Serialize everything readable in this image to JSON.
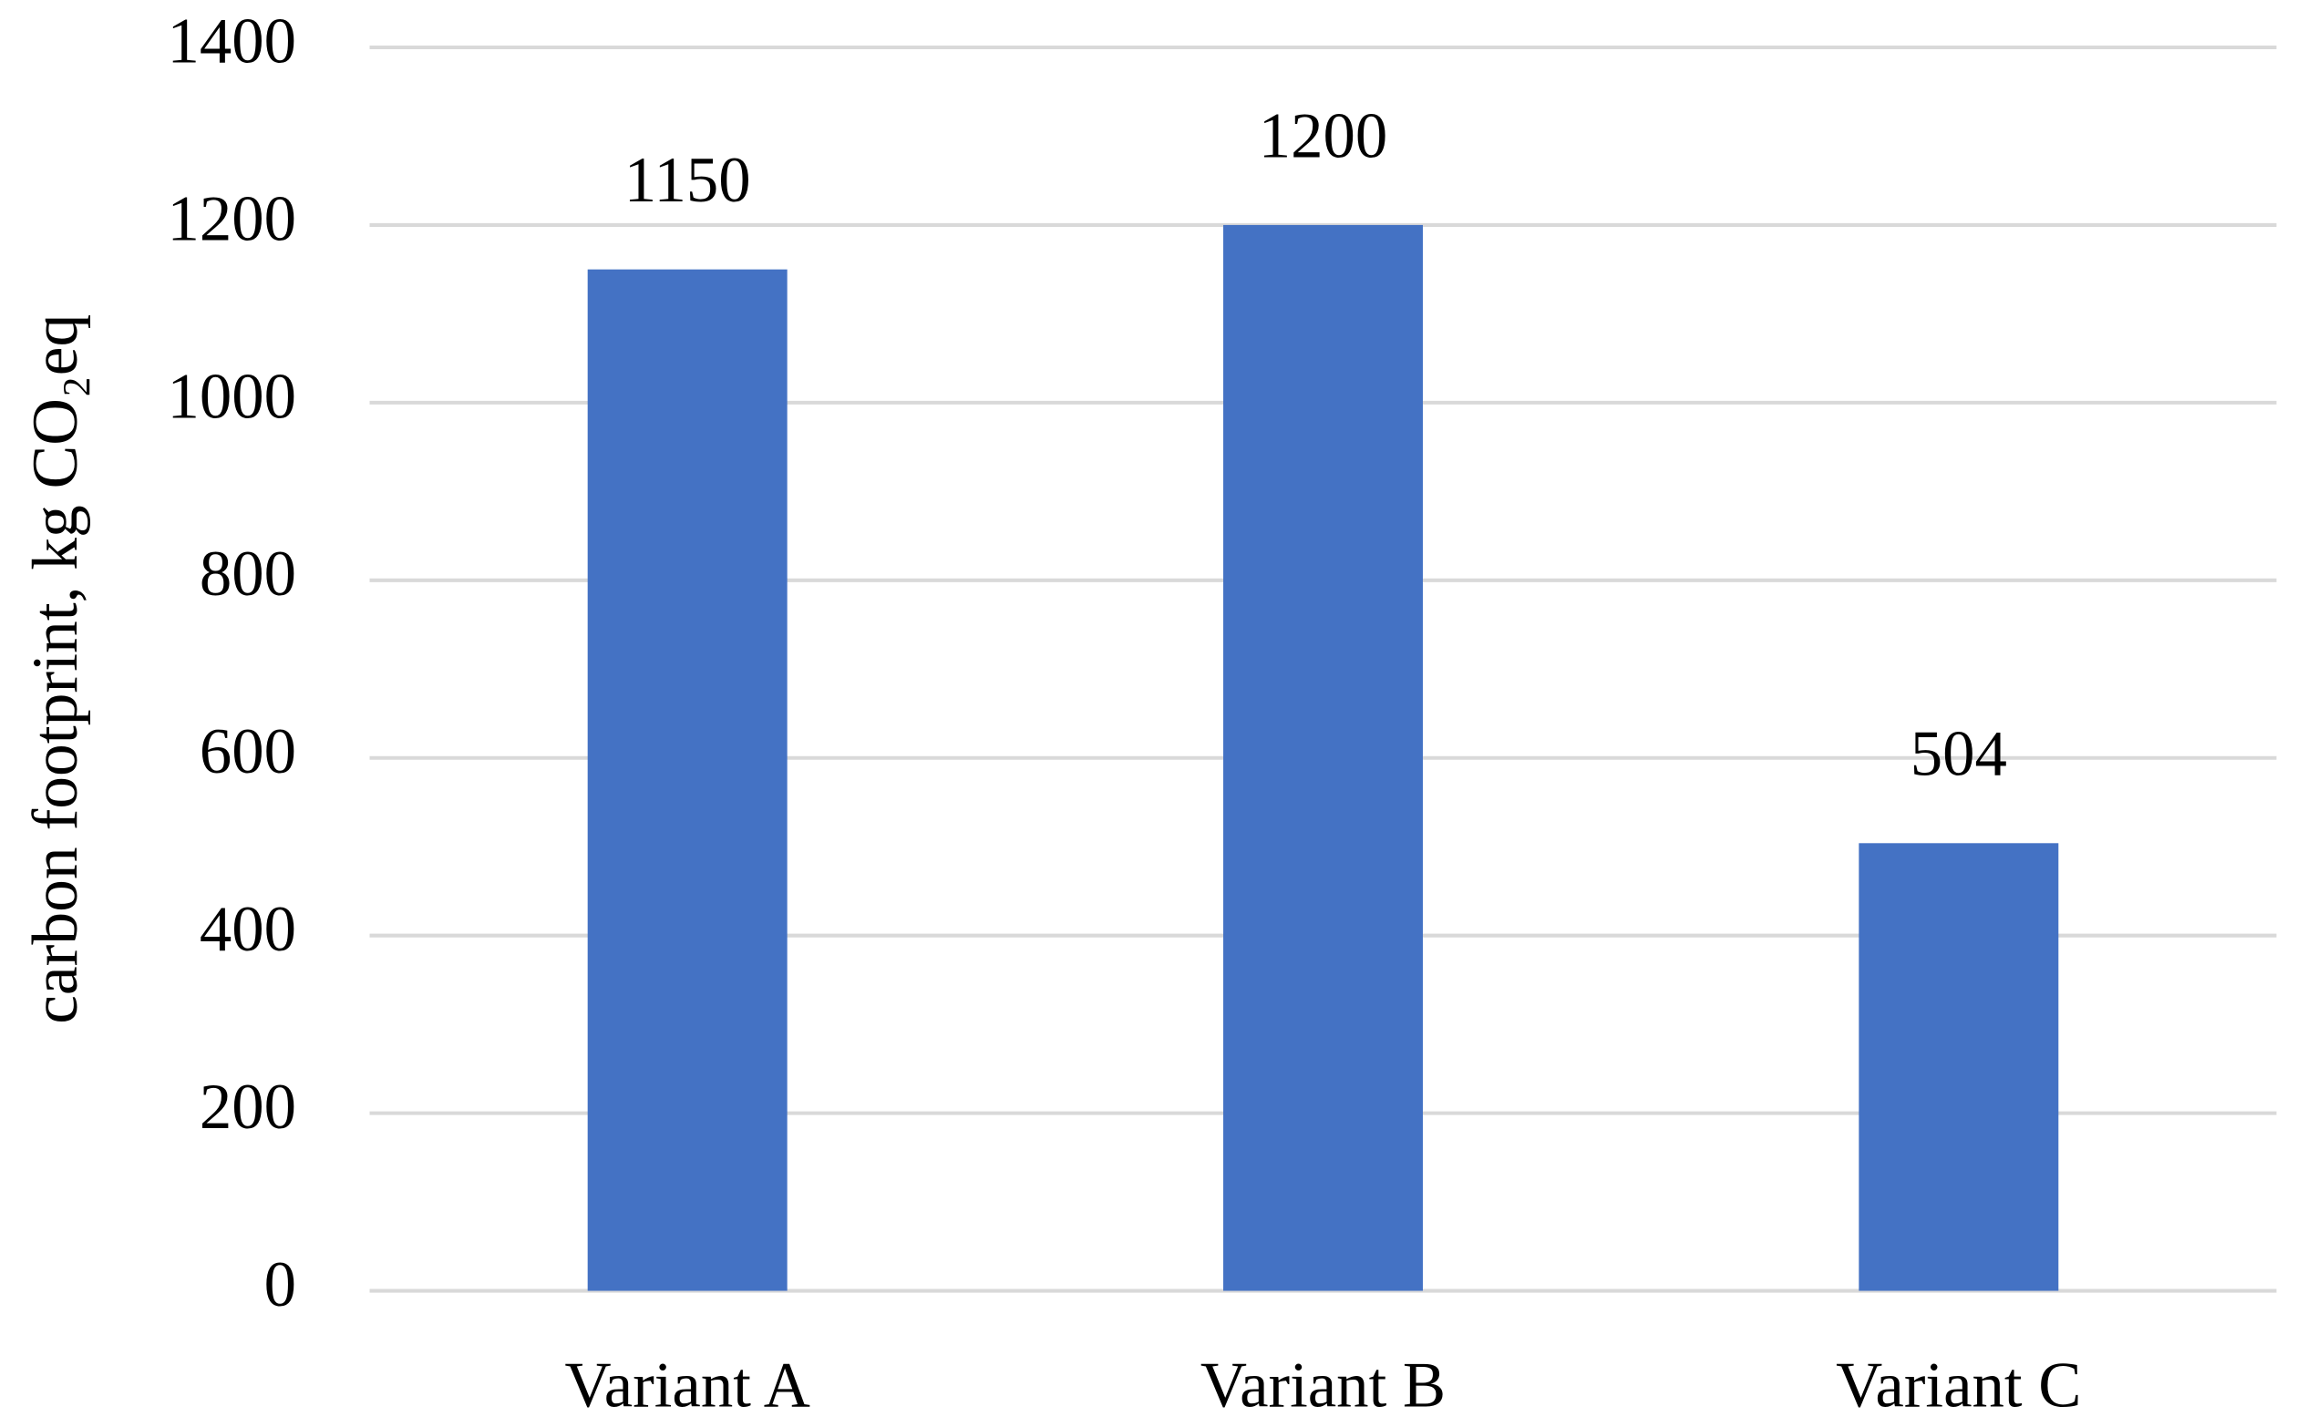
{
  "chart_data": {
    "type": "bar",
    "y_label": "carbon footprint, kg CO₂eq",
    "categories": [
      "Variant A",
      "Variant B",
      "Variant C"
    ],
    "values": [
      1150,
      1200,
      504
    ],
    "color": "#4472c4",
    "ylim": [
      0,
      1400
    ],
    "yticks": [
      0,
      200,
      400,
      600,
      800,
      1000,
      1200,
      1400
    ],
    "grid": true,
    "data_labels": true
  }
}
